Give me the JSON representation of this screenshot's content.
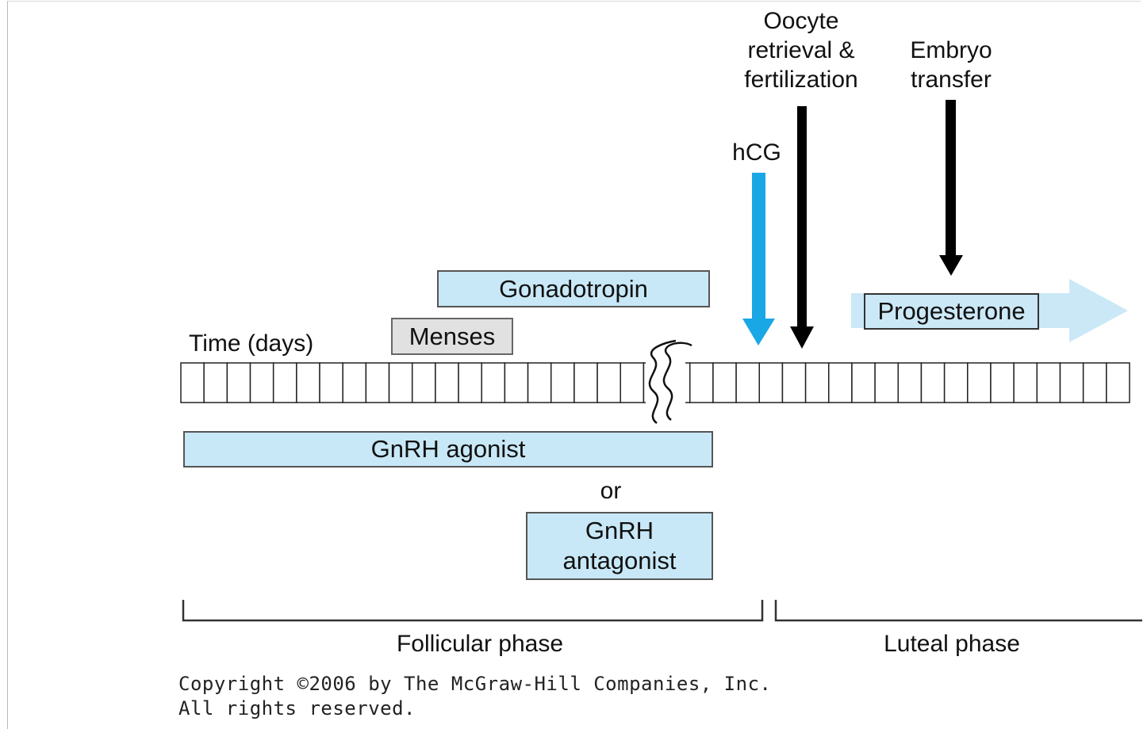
{
  "labels": {
    "time_axis": "Time (days)",
    "oocyte_line1": "Oocyte",
    "oocyte_line2": "retrieval &",
    "oocyte_line3": "fertilization",
    "embryo_line1": "Embryo",
    "embryo_line2": "transfer",
    "hcg": "hCG",
    "or": "or",
    "follicular_phase": "Follicular phase",
    "luteal_phase": "Luteal phase"
  },
  "boxes": {
    "gonadotropin": "Gonadotropin",
    "menses": "Menses",
    "progesterone": "Progesterone",
    "gnrh_agonist": "GnRH agonist",
    "gnrh_antagonist_line1": "GnRH",
    "gnrh_antagonist_line2": "antagonist"
  },
  "copyright": {
    "line1": "Copyright ©2006 by The McGraw-Hill Companies, Inc.",
    "line2": "All rights reserved."
  },
  "colors": {
    "box_fill": "#c8e8f7",
    "hcg_arrow": "#1aa7e6",
    "progesterone_arrow": "#cbe8f6",
    "menses_fill": "#e1e1e1"
  }
}
